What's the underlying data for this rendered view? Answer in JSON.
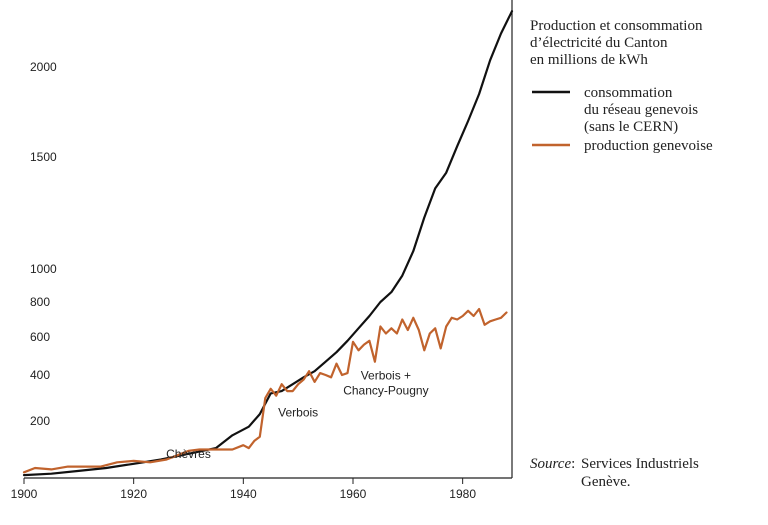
{
  "chart_data": {
    "type": "line",
    "title": "Production et consommation\nd’électricité du Canton\nen millions de kWh",
    "xlabel": "",
    "ylabel": "",
    "xlim": [
      1900,
      1989
    ],
    "x_ticks": [
      1900,
      1920,
      1940,
      1960,
      1980
    ],
    "y_ticks": [
      200,
      400,
      600,
      800,
      1000,
      1500,
      2000
    ],
    "y_scale_note": "non-linear y axis (compressed above 800)",
    "legend_placement": "top-right",
    "grid": false,
    "series": [
      {
        "name": "consommation\ndu réseau genevois\n(sans le CERN)",
        "color": "#111111",
        "points": [
          [
            1900,
            10
          ],
          [
            1905,
            15
          ],
          [
            1910,
            25
          ],
          [
            1915,
            35
          ],
          [
            1920,
            50
          ],
          [
            1925,
            65
          ],
          [
            1930,
            85
          ],
          [
            1935,
            105
          ],
          [
            1938,
            150
          ],
          [
            1941,
            180
          ],
          [
            1943,
            230
          ],
          [
            1945,
            320
          ],
          [
            1947,
            330
          ],
          [
            1949,
            360
          ],
          [
            1951,
            390
          ],
          [
            1953,
            420
          ],
          [
            1955,
            470
          ],
          [
            1957,
            520
          ],
          [
            1959,
            580
          ],
          [
            1961,
            650
          ],
          [
            1963,
            720
          ],
          [
            1965,
            800
          ],
          [
            1967,
            860
          ],
          [
            1969,
            960
          ],
          [
            1971,
            1080
          ],
          [
            1973,
            1230
          ],
          [
            1975,
            1360
          ],
          [
            1977,
            1430
          ],
          [
            1979,
            1560
          ],
          [
            1981,
            1700
          ],
          [
            1983,
            1850
          ],
          [
            1985,
            2030
          ],
          [
            1987,
            2150
          ],
          [
            1989,
            2250
          ]
        ]
      },
      {
        "name": "production genevoise",
        "color": "#c1632d",
        "points": [
          [
            1900,
            20
          ],
          [
            1902,
            35
          ],
          [
            1905,
            30
          ],
          [
            1908,
            40
          ],
          [
            1911,
            40
          ],
          [
            1914,
            40
          ],
          [
            1917,
            55
          ],
          [
            1920,
            60
          ],
          [
            1923,
            55
          ],
          [
            1926,
            65
          ],
          [
            1928,
            80
          ],
          [
            1930,
            95
          ],
          [
            1932,
            100
          ],
          [
            1935,
            100
          ],
          [
            1938,
            100
          ],
          [
            1940,
            115
          ],
          [
            1941,
            105
          ],
          [
            1942,
            130
          ],
          [
            1943,
            145
          ],
          [
            1944,
            300
          ],
          [
            1945,
            340
          ],
          [
            1946,
            310
          ],
          [
            1947,
            360
          ],
          [
            1948,
            330
          ],
          [
            1949,
            330
          ],
          [
            1950,
            360
          ],
          [
            1951,
            380
          ],
          [
            1952,
            420
          ],
          [
            1953,
            370
          ],
          [
            1954,
            410
          ],
          [
            1955,
            400
          ],
          [
            1956,
            390
          ],
          [
            1957,
            460
          ],
          [
            1958,
            400
          ],
          [
            1959,
            410
          ],
          [
            1960,
            575
          ],
          [
            1961,
            530
          ],
          [
            1962,
            560
          ],
          [
            1963,
            580
          ],
          [
            1964,
            470
          ],
          [
            1965,
            660
          ],
          [
            1966,
            620
          ],
          [
            1967,
            650
          ],
          [
            1968,
            620
          ],
          [
            1969,
            700
          ],
          [
            1970,
            640
          ],
          [
            1971,
            710
          ],
          [
            1972,
            640
          ],
          [
            1973,
            530
          ],
          [
            1974,
            620
          ],
          [
            1975,
            650
          ],
          [
            1976,
            540
          ],
          [
            1977,
            660
          ],
          [
            1978,
            710
          ],
          [
            1979,
            700
          ],
          [
            1980,
            720
          ],
          [
            1981,
            750
          ],
          [
            1982,
            720
          ],
          [
            1983,
            760
          ],
          [
            1984,
            670
          ],
          [
            1985,
            690
          ],
          [
            1986,
            700
          ],
          [
            1987,
            710
          ],
          [
            1988,
            740
          ]
        ]
      }
    ],
    "annotations": [
      {
        "text": "Chèvres",
        "x": 1930,
        "y": 70
      },
      {
        "text": "Verbois",
        "x": 1950,
        "y": 220
      },
      {
        "text": "Verbois +\nChancy-Pougny",
        "x": 1966,
        "y": 380
      }
    ]
  },
  "source": {
    "label": "Source",
    "separator": ":",
    "text_line1": "Services Industriels",
    "text_line2": "Genève."
  }
}
